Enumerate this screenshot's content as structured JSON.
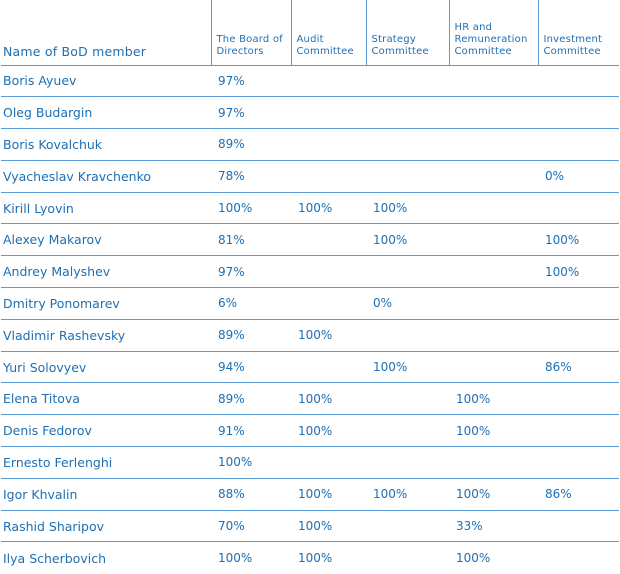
{
  "table": {
    "headers": [
      "Name of BoD member",
      "The Board of\nDirectors",
      "Audit\nCommittee",
      "Strategy\nCommittee",
      "HR and\nRemuneration\nCommittee",
      "Investment\nCommittee"
    ],
    "rows": [
      [
        "Boris Ayuev",
        "97%",
        "",
        "",
        "",
        ""
      ],
      [
        "Oleg Budargin",
        "97%",
        "",
        "",
        "",
        ""
      ],
      [
        "Boris Kovalchuk",
        "89%",
        "",
        "",
        "",
        ""
      ],
      [
        "Vyacheslav Kravchenko",
        "78%",
        "",
        "",
        "",
        "0%"
      ],
      [
        "Kirill Lyovin",
        "100%",
        "100%",
        "100%",
        "",
        ""
      ],
      [
        "Alexey Makarov",
        "81%",
        "",
        "100%",
        "",
        "100%"
      ],
      [
        "Andrey Malyshev",
        "97%",
        "",
        "",
        "",
        "100%"
      ],
      [
        "Dmitry Ponomarev",
        "6%",
        "",
        "0%",
        "",
        ""
      ],
      [
        "Vladimir Rashevsky",
        "89%",
        "100%",
        "",
        "",
        ""
      ],
      [
        "Yuri Solovyev",
        "94%",
        "",
        "100%",
        "",
        "86%"
      ],
      [
        "Elena Titova",
        "89%",
        "100%",
        "",
        "100%",
        ""
      ],
      [
        "Denis Fedorov",
        "91%",
        "100%",
        "",
        "100%",
        ""
      ],
      [
        "Ernesto Ferlenghi",
        "100%",
        "",
        "",
        "",
        ""
      ],
      [
        "Igor Khvalin",
        "88%",
        "100%",
        "100%",
        "100%",
        "86%"
      ],
      [
        "Rashid Sharipov",
        "70%",
        "100%",
        "",
        "33%",
        ""
      ],
      [
        "Ilya Scherbovich",
        "100%",
        "100%",
        "",
        "100%",
        ""
      ]
    ]
  }
}
